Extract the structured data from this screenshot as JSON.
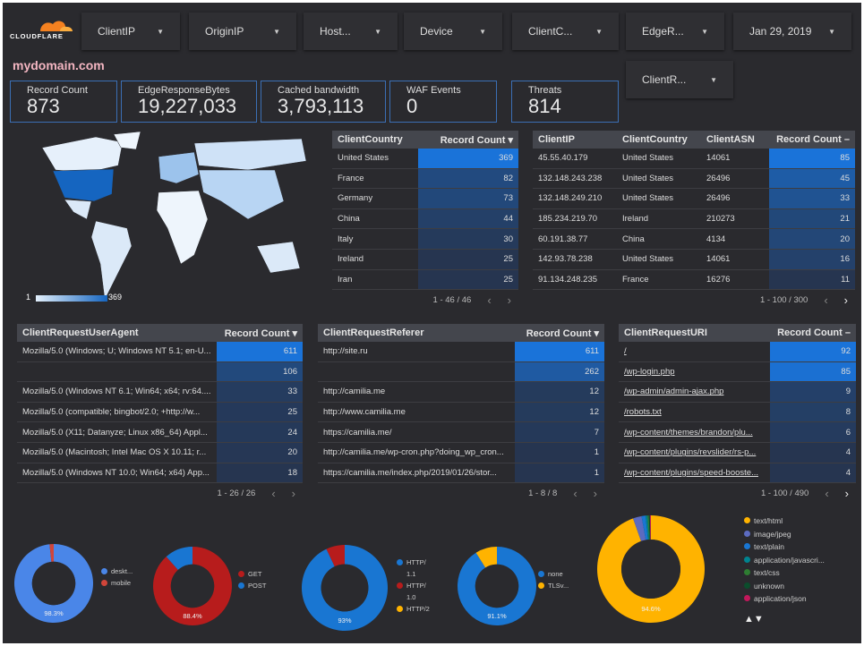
{
  "brand": {
    "logo_text": "CLOUDFLARE",
    "title": "mydomain.com"
  },
  "filters": [
    {
      "label": "ClientIP"
    },
    {
      "label": "OriginIP"
    },
    {
      "label": "Host..."
    },
    {
      "label": "Device"
    },
    {
      "label": "ClientC..."
    },
    {
      "label": "EdgeR..."
    },
    {
      "label": "Jan 29, 2019"
    },
    {
      "label": "ClientR..."
    }
  ],
  "kpis": [
    {
      "label": "Record Count",
      "value": "873"
    },
    {
      "label": "EdgeResponseBytes",
      "value": "19,227,033"
    },
    {
      "label": "Cached bandwidth",
      "value": "3,793,113"
    },
    {
      "label": "WAF Events",
      "value": "0"
    },
    {
      "label": "Threats",
      "value": "814"
    }
  ],
  "map": {
    "legend_min": "1",
    "legend_max": "369",
    "colors": {
      "high": "#1565c0",
      "low": "#e3f0fc"
    }
  },
  "tables": {
    "country": {
      "columns": [
        "ClientCountry",
        "Record Count ▾"
      ],
      "rows": [
        [
          "United States",
          "369"
        ],
        [
          "France",
          "82"
        ],
        [
          "Germany",
          "73"
        ],
        [
          "China",
          "44"
        ],
        [
          "Italy",
          "30"
        ],
        [
          "Ireland",
          "25"
        ],
        [
          "Iran",
          "25"
        ]
      ],
      "pager": "1 - 46 / 46"
    },
    "ip": {
      "columns": [
        "ClientIP",
        "ClientCountry",
        "ClientASN",
        "Record Count –"
      ],
      "rows": [
        [
          "45.55.40.179",
          "United States",
          "14061",
          "85"
        ],
        [
          "132.148.243.238",
          "United States",
          "26496",
          "45"
        ],
        [
          "132.148.249.210",
          "United States",
          "26496",
          "33"
        ],
        [
          "185.234.219.70",
          "Ireland",
          "210273",
          "21"
        ],
        [
          "60.191.38.77",
          "China",
          "4134",
          "20"
        ],
        [
          "142.93.78.238",
          "United States",
          "14061",
          "16"
        ],
        [
          "91.134.248.235",
          "France",
          "16276",
          "11"
        ]
      ],
      "pager": "1 - 100 / 300"
    },
    "ua": {
      "columns": [
        "ClientRequestUserAgent",
        "Record Count ▾"
      ],
      "rows": [
        [
          "Mozilla/5.0 (Windows; U; Windows NT 5.1; en-U...",
          "611"
        ],
        [
          "",
          "106"
        ],
        [
          "Mozilla/5.0 (Windows NT 6.1; Win64; x64; rv:64....",
          "33"
        ],
        [
          "Mozilla/5.0 (compatible; bingbot/2.0; +http://w...",
          "25"
        ],
        [
          "Mozilla/5.0 (X11; Datanyze; Linux x86_64) Appl...",
          "24"
        ],
        [
          "Mozilla/5.0 (Macintosh; Intel Mac OS X 10.11; r...",
          "20"
        ],
        [
          "Mozilla/5.0 (Windows NT 10.0; Win64; x64) App...",
          "18"
        ]
      ],
      "pager": "1 - 26 / 26"
    },
    "referer": {
      "columns": [
        "ClientRequestReferer",
        "Record Count ▾"
      ],
      "rows": [
        [
          "http://site.ru",
          "611"
        ],
        [
          "",
          "262"
        ],
        [
          "http://camilia.me",
          "12"
        ],
        [
          "http://www.camilia.me",
          "12"
        ],
        [
          "https://camilia.me/",
          "7"
        ],
        [
          "http://camilia.me/wp-cron.php?doing_wp_cron...",
          "1"
        ],
        [
          "https://camilia.me/index.php/2019/01/26/stor...",
          "1"
        ]
      ],
      "pager": "1 - 8 / 8"
    },
    "uri": {
      "columns": [
        "ClientRequestURI",
        "Record Count –"
      ],
      "rows": [
        [
          "/",
          "92"
        ],
        [
          "/wp-login.php",
          "85"
        ],
        [
          "/wp-admin/admin-ajax.php",
          "9"
        ],
        [
          "/robots.txt",
          "8"
        ],
        [
          "/wp-content/themes/brandon/plu...",
          "6"
        ],
        [
          "/wp-content/plugins/revslider/rs-p...",
          "4"
        ],
        [
          "/wp-content/plugins/speed-booste...",
          "4"
        ]
      ],
      "pager": "1 - 100 / 490"
    }
  },
  "pager_icons": {
    "prev": "‹",
    "next": "›"
  },
  "bar_colors": {
    "max": "#1a73d9",
    "min": "#263550"
  },
  "chart_data": [
    {
      "type": "pie",
      "donut": true,
      "series": [
        {
          "name": "deskt...",
          "value": 98.3,
          "color": "#4a86e8"
        },
        {
          "name": "mobile",
          "value": 1.7,
          "color": "#d0453a"
        }
      ],
      "label": "98.3%"
    },
    {
      "type": "pie",
      "donut": true,
      "series": [
        {
          "name": "GET",
          "value": 88.4,
          "color": "#b71c1c"
        },
        {
          "name": "POST",
          "value": 11.6,
          "color": "#1976d2"
        }
      ],
      "label": "88.4%"
    },
    {
      "type": "pie",
      "donut": true,
      "series": [
        {
          "name": "HTTP/ 1.1",
          "value": 93,
          "color": "#1976d2"
        },
        {
          "name": "HTTP/ 1.0",
          "value": 7,
          "color": "#b71c1c"
        },
        {
          "name": "HTTP/2",
          "value": 0,
          "color": "#ffb300"
        }
      ],
      "label": "93%"
    },
    {
      "type": "pie",
      "donut": true,
      "series": [
        {
          "name": "none",
          "value": 91.1,
          "color": "#1976d2"
        },
        {
          "name": "TLSv...",
          "value": 8.9,
          "color": "#ffb300"
        }
      ],
      "label": "91.1%"
    },
    {
      "type": "pie",
      "donut": true,
      "series": [
        {
          "name": "text/html",
          "value": 94.6,
          "color": "#ffb300"
        },
        {
          "name": "image/jpeg",
          "value": 2.6,
          "color": "#5c6bc0"
        },
        {
          "name": "text/plain",
          "value": 1.2,
          "color": "#1976d2"
        },
        {
          "name": "application/javascri...",
          "value": 0.6,
          "color": "#00838f"
        },
        {
          "name": "text/css",
          "value": 0.4,
          "color": "#2e7d32"
        },
        {
          "name": "unknown",
          "value": 0.3,
          "color": "#0b4d2c"
        },
        {
          "name": "application/json",
          "value": 0.3,
          "color": "#c2185b"
        }
      ],
      "label": "94.6%",
      "legend_pager": "▲▼"
    }
  ]
}
